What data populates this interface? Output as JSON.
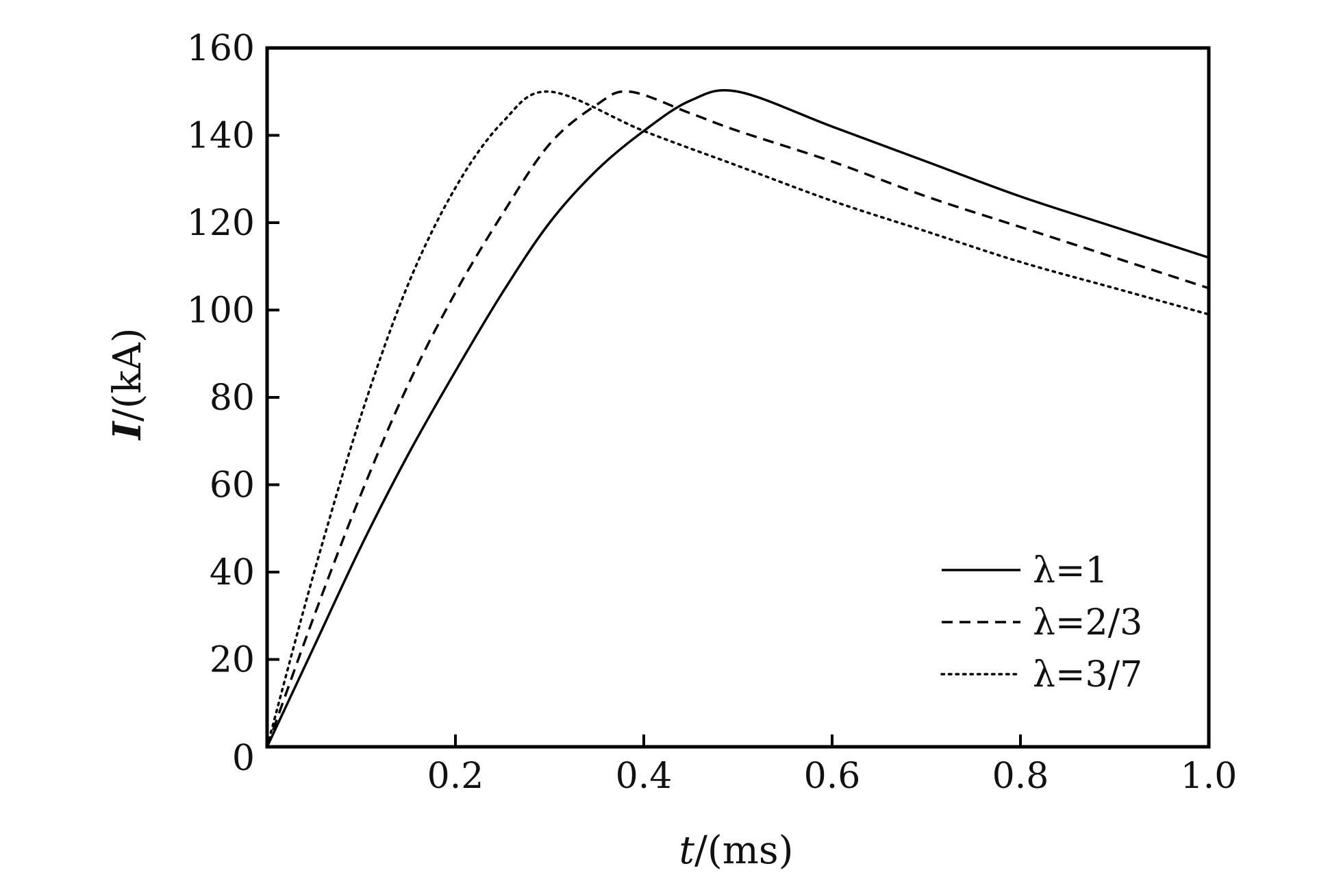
{
  "chart_data": {
    "type": "line",
    "xlabel_symbol": "t",
    "xlabel_unit": "/(ms)",
    "ylabel_symbol": "I",
    "ylabel_unit": "/(kA)",
    "xlim": [
      0,
      1.0
    ],
    "ylim": [
      0,
      160
    ],
    "x_ticks": [
      0.2,
      0.4,
      0.6,
      0.8,
      1.0
    ],
    "x_tick_labels": [
      "0.2",
      "0.4",
      "0.6",
      "0.8",
      "1.0"
    ],
    "y_ticks": [
      0,
      20,
      40,
      60,
      80,
      100,
      120,
      140,
      160
    ],
    "y_tick_labels": [
      "0",
      "20",
      "40",
      "60",
      "80",
      "100",
      "120",
      "140",
      "160"
    ],
    "grid": false,
    "legend_position": "lower-right",
    "series": [
      {
        "name": "λ=1",
        "style": "solid",
        "x": [
          0,
          0.05,
          0.1,
          0.15,
          0.2,
          0.25,
          0.3,
          0.35,
          0.4,
          0.45,
          0.5,
          0.6,
          0.7,
          0.8,
          0.9,
          1.0
        ],
        "y": [
          0,
          23,
          46,
          67,
          86,
          104,
          120,
          132,
          141,
          148,
          150,
          142,
          134,
          126,
          119,
          112
        ]
      },
      {
        "name": "λ=2/3",
        "style": "dashed",
        "x": [
          0,
          0.05,
          0.1,
          0.15,
          0.2,
          0.25,
          0.3,
          0.35,
          0.385,
          0.45,
          0.5,
          0.6,
          0.7,
          0.8,
          0.9,
          1.0
        ],
        "y": [
          0,
          30,
          58,
          83,
          104,
          122,
          138,
          147,
          150,
          145,
          141,
          134,
          126,
          119,
          112,
          105
        ]
      },
      {
        "name": "λ=3/7",
        "style": "dotted",
        "x": [
          0,
          0.05,
          0.1,
          0.15,
          0.2,
          0.25,
          0.3,
          0.4,
          0.5,
          0.6,
          0.7,
          0.8,
          0.9,
          1.0
        ],
        "y": [
          0,
          40,
          76,
          106,
          128,
          143,
          150,
          141,
          133,
          125,
          118,
          111,
          105,
          99
        ]
      }
    ]
  }
}
